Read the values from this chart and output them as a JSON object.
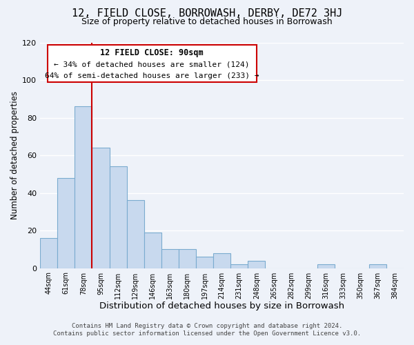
{
  "title": "12, FIELD CLOSE, BORROWASH, DERBY, DE72 3HJ",
  "subtitle": "Size of property relative to detached houses in Borrowash",
  "xlabel": "Distribution of detached houses by size in Borrowash",
  "ylabel": "Number of detached properties",
  "bar_labels": [
    "44sqm",
    "61sqm",
    "78sqm",
    "95sqm",
    "112sqm",
    "129sqm",
    "146sqm",
    "163sqm",
    "180sqm",
    "197sqm",
    "214sqm",
    "231sqm",
    "248sqm",
    "265sqm",
    "282sqm",
    "299sqm",
    "316sqm",
    "333sqm",
    "350sqm",
    "367sqm",
    "384sqm"
  ],
  "bar_values": [
    16,
    48,
    86,
    64,
    54,
    36,
    19,
    10,
    10,
    6,
    8,
    2,
    4,
    0,
    0,
    0,
    2,
    0,
    0,
    2,
    0
  ],
  "bar_color": "#c8d9ee",
  "bar_edge_color": "#7aabcf",
  "vline_x_idx": 2,
  "vline_color": "#cc0000",
  "ylim": [
    0,
    120
  ],
  "yticks": [
    0,
    20,
    40,
    60,
    80,
    100,
    120
  ],
  "annotation_title": "12 FIELD CLOSE: 90sqm",
  "annotation_line1": "← 34% of detached houses are smaller (124)",
  "annotation_line2": "64% of semi-detached houses are larger (233) →",
  "annotation_box_color": "#ffffff",
  "annotation_box_edge": "#cc0000",
  "footer_line1": "Contains HM Land Registry data © Crown copyright and database right 2024.",
  "footer_line2": "Contains public sector information licensed under the Open Government Licence v3.0.",
  "background_color": "#eef2f9",
  "grid_color": "#ffffff",
  "title_fontsize": 11,
  "subtitle_fontsize": 9,
  "xlabel_fontsize": 9.5,
  "ylabel_fontsize": 8.5,
  "footer_fontsize": 6.5
}
